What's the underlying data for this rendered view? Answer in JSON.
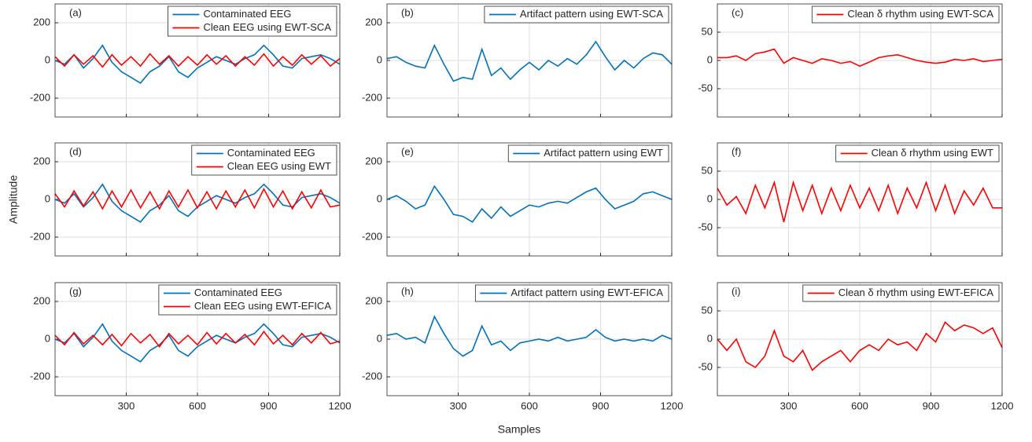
{
  "x_label": "Samples",
  "y_label": "Amplitude",
  "chart_data": [
    {
      "type": "line",
      "label": "(a)",
      "legend": "top-right",
      "grid": true,
      "show_xtick_labels": false,
      "x": [
        0,
        40,
        80,
        120,
        160,
        200,
        240,
        280,
        320,
        360,
        400,
        440,
        480,
        520,
        560,
        600,
        640,
        680,
        720,
        760,
        800,
        840,
        880,
        920,
        960,
        1000,
        1040,
        1080,
        1120,
        1160,
        1200
      ],
      "xlim": [
        0,
        1200
      ],
      "xticks": [
        300,
        600,
        900,
        1200
      ],
      "ylim": [
        -300,
        300
      ],
      "yticks": [
        -200,
        0,
        200
      ],
      "series": [
        {
          "name": "Contaminated EEG",
          "color": "#0072bd",
          "values": [
            0,
            -20,
            30,
            -40,
            10,
            80,
            -10,
            -60,
            -90,
            -120,
            -60,
            -30,
            20,
            -60,
            -90,
            -40,
            -10,
            20,
            0,
            -20,
            10,
            30,
            80,
            30,
            -30,
            -40,
            10,
            20,
            30,
            10,
            -20
          ]
        },
        {
          "name": "Clean EEG using EWT-SCA",
          "color": "#ff0000",
          "values": [
            20,
            -30,
            30,
            -20,
            25,
            -35,
            30,
            -25,
            20,
            -30,
            35,
            -20,
            25,
            -30,
            20,
            -25,
            30,
            -20,
            25,
            -30,
            20,
            -25,
            35,
            -30,
            20,
            -25,
            30,
            -20,
            25,
            -30,
            10
          ]
        }
      ]
    },
    {
      "type": "line",
      "label": "(b)",
      "legend": "top-right",
      "grid": true,
      "show_xtick_labels": false,
      "x": [
        0,
        40,
        80,
        120,
        160,
        200,
        240,
        280,
        320,
        360,
        400,
        440,
        480,
        520,
        560,
        600,
        640,
        680,
        720,
        760,
        800,
        840,
        880,
        920,
        960,
        1000,
        1040,
        1080,
        1120,
        1160,
        1200
      ],
      "xlim": [
        0,
        1200
      ],
      "xticks": [
        300,
        600,
        900,
        1200
      ],
      "ylim": [
        -300,
        300
      ],
      "yticks": [
        -200,
        0,
        200
      ],
      "series": [
        {
          "name": "Artifact pattern using EWT-SCA",
          "color": "#0072bd",
          "values": [
            10,
            20,
            -10,
            -30,
            -40,
            80,
            -20,
            -110,
            -90,
            -100,
            60,
            -80,
            -40,
            -100,
            -50,
            -10,
            -50,
            0,
            -30,
            10,
            -20,
            30,
            100,
            20,
            -50,
            0,
            -40,
            10,
            40,
            30,
            -20
          ]
        }
      ]
    },
    {
      "type": "line",
      "label": "(c)",
      "legend": "top-right",
      "grid": true,
      "show_xtick_labels": false,
      "x": [
        0,
        40,
        80,
        120,
        160,
        200,
        240,
        280,
        320,
        360,
        400,
        440,
        480,
        520,
        560,
        600,
        640,
        680,
        720,
        760,
        800,
        840,
        880,
        920,
        960,
        1000,
        1040,
        1080,
        1120,
        1160,
        1200
      ],
      "xlim": [
        0,
        1200
      ],
      "xticks": [
        300,
        600,
        900,
        1200
      ],
      "ylim": [
        -100,
        100
      ],
      "yticks": [
        -50,
        0,
        50
      ],
      "series": [
        {
          "name": "Clean δ rhythm using EWT-SCA",
          "color": "#ff0000",
          "values": [
            5,
            5,
            8,
            0,
            12,
            15,
            20,
            -5,
            5,
            0,
            -5,
            3,
            0,
            -5,
            -2,
            -10,
            -3,
            5,
            8,
            10,
            5,
            0,
            -3,
            -5,
            -3,
            2,
            0,
            3,
            -2,
            0,
            2
          ]
        }
      ]
    },
    {
      "type": "line",
      "label": "(d)",
      "legend": "top-right",
      "grid": true,
      "show_xtick_labels": false,
      "x": [
        0,
        40,
        80,
        120,
        160,
        200,
        240,
        280,
        320,
        360,
        400,
        440,
        480,
        520,
        560,
        600,
        640,
        680,
        720,
        760,
        800,
        840,
        880,
        920,
        960,
        1000,
        1040,
        1080,
        1120,
        1160,
        1200
      ],
      "xlim": [
        0,
        1200
      ],
      "xticks": [
        300,
        600,
        900,
        1200
      ],
      "ylim": [
        -300,
        300
      ],
      "yticks": [
        -200,
        0,
        200
      ],
      "series": [
        {
          "name": "Contaminated EEG",
          "color": "#0072bd",
          "values": [
            0,
            -20,
            30,
            -40,
            10,
            80,
            -10,
            -60,
            -90,
            -120,
            -60,
            -30,
            20,
            -60,
            -90,
            -40,
            -10,
            20,
            0,
            -20,
            10,
            30,
            80,
            30,
            -30,
            -40,
            10,
            20,
            30,
            10,
            -20
          ]
        },
        {
          "name": "Clean EEG using EWT",
          "color": "#ff0000",
          "values": [
            30,
            -40,
            45,
            -35,
            40,
            -50,
            45,
            -40,
            50,
            -45,
            40,
            -50,
            45,
            -40,
            50,
            -45,
            40,
            -50,
            45,
            -40,
            50,
            -45,
            55,
            -40,
            45,
            -50,
            40,
            -45,
            50,
            -40,
            -30
          ]
        }
      ]
    },
    {
      "type": "line",
      "label": "(e)",
      "legend": "top-right",
      "grid": true,
      "show_xtick_labels": false,
      "x": [
        0,
        40,
        80,
        120,
        160,
        200,
        240,
        280,
        320,
        360,
        400,
        440,
        480,
        520,
        560,
        600,
        640,
        680,
        720,
        760,
        800,
        840,
        880,
        920,
        960,
        1000,
        1040,
        1080,
        1120,
        1160,
        1200
      ],
      "xlim": [
        0,
        1200
      ],
      "xticks": [
        300,
        600,
        900,
        1200
      ],
      "ylim": [
        -300,
        300
      ],
      "yticks": [
        -200,
        0,
        200
      ],
      "series": [
        {
          "name": "Artifact pattern using EWT",
          "color": "#0072bd",
          "values": [
            0,
            20,
            -10,
            -50,
            -30,
            70,
            0,
            -80,
            -90,
            -120,
            -50,
            -100,
            -40,
            -90,
            -60,
            -30,
            -40,
            -20,
            -10,
            -20,
            10,
            40,
            60,
            0,
            -50,
            -30,
            -10,
            30,
            40,
            20,
            0
          ]
        }
      ]
    },
    {
      "type": "line",
      "label": "(f)",
      "legend": "top-right",
      "grid": true,
      "show_xtick_labels": false,
      "x": [
        0,
        40,
        80,
        120,
        160,
        200,
        240,
        280,
        320,
        360,
        400,
        440,
        480,
        520,
        560,
        600,
        640,
        680,
        720,
        760,
        800,
        840,
        880,
        920,
        960,
        1000,
        1040,
        1080,
        1120,
        1160,
        1200
      ],
      "xlim": [
        0,
        1200
      ],
      "xticks": [
        300,
        600,
        900,
        1200
      ],
      "ylim": [
        -100,
        100
      ],
      "yticks": [
        -50,
        0,
        50
      ],
      "series": [
        {
          "name": "Clean δ rhythm using EWT",
          "color": "#ff0000",
          "values": [
            20,
            -10,
            5,
            -25,
            25,
            -15,
            30,
            -40,
            30,
            -20,
            25,
            -25,
            20,
            -20,
            25,
            -15,
            20,
            -20,
            25,
            -25,
            20,
            -15,
            30,
            -20,
            25,
            -25,
            15,
            -10,
            20,
            -15,
            -15
          ]
        }
      ]
    },
    {
      "type": "line",
      "label": "(g)",
      "legend": "top-right",
      "grid": true,
      "show_xtick_labels": true,
      "x": [
        0,
        40,
        80,
        120,
        160,
        200,
        240,
        280,
        320,
        360,
        400,
        440,
        480,
        520,
        560,
        600,
        640,
        680,
        720,
        760,
        800,
        840,
        880,
        920,
        960,
        1000,
        1040,
        1080,
        1120,
        1160,
        1200
      ],
      "xlim": [
        0,
        1200
      ],
      "xticks": [
        300,
        600,
        900,
        1200
      ],
      "ylim": [
        -300,
        300
      ],
      "yticks": [
        -200,
        0,
        200
      ],
      "series": [
        {
          "name": "Contaminated EEG",
          "color": "#0072bd",
          "values": [
            0,
            -20,
            30,
            -40,
            10,
            80,
            -10,
            -60,
            -90,
            -120,
            -60,
            -30,
            20,
            -60,
            -90,
            -40,
            -10,
            20,
            0,
            -20,
            10,
            30,
            80,
            30,
            -30,
            -40,
            10,
            20,
            30,
            10,
            -20
          ]
        },
        {
          "name": "Clean EEG using EWT-EFICA",
          "color": "#ff0000",
          "values": [
            20,
            -30,
            35,
            -25,
            20,
            -30,
            25,
            -35,
            30,
            -20,
            25,
            -40,
            30,
            -25,
            20,
            -30,
            35,
            -25,
            30,
            -20,
            25,
            -30,
            40,
            -25,
            20,
            -30,
            30,
            -20,
            35,
            -25,
            -10
          ]
        }
      ]
    },
    {
      "type": "line",
      "label": "(h)",
      "legend": "top-right",
      "grid": true,
      "show_xtick_labels": true,
      "x": [
        0,
        40,
        80,
        120,
        160,
        200,
        240,
        280,
        320,
        360,
        400,
        440,
        480,
        520,
        560,
        600,
        640,
        680,
        720,
        760,
        800,
        840,
        880,
        920,
        960,
        1000,
        1040,
        1080,
        1120,
        1160,
        1200
      ],
      "xlim": [
        0,
        1200
      ],
      "xticks": [
        300,
        600,
        900,
        1200
      ],
      "ylim": [
        -300,
        300
      ],
      "yticks": [
        -200,
        0,
        200
      ],
      "series": [
        {
          "name": "Artifact pattern using EWT-EFICA",
          "color": "#0072bd",
          "values": [
            20,
            30,
            0,
            10,
            -20,
            120,
            30,
            -50,
            -90,
            -60,
            70,
            -30,
            -10,
            -60,
            -20,
            -10,
            0,
            -10,
            10,
            -10,
            0,
            10,
            50,
            10,
            -10,
            0,
            -10,
            0,
            -10,
            20,
            0
          ]
        }
      ]
    },
    {
      "type": "line",
      "label": "(i)",
      "legend": "top-right",
      "grid": true,
      "show_xtick_labels": true,
      "x": [
        0,
        40,
        80,
        120,
        160,
        200,
        240,
        280,
        320,
        360,
        400,
        440,
        480,
        520,
        560,
        600,
        640,
        680,
        720,
        760,
        800,
        840,
        880,
        920,
        960,
        1000,
        1040,
        1080,
        1120,
        1160,
        1200
      ],
      "xlim": [
        0,
        1200
      ],
      "xticks": [
        300,
        600,
        900,
        1200
      ],
      "ylim": [
        -100,
        100
      ],
      "yticks": [
        -50,
        0,
        50
      ],
      "series": [
        {
          "name": "Clean δ rhythm using EWT-EFICA",
          "color": "#ff0000",
          "values": [
            0,
            -20,
            0,
            -40,
            -50,
            -30,
            15,
            -30,
            -40,
            -20,
            -55,
            -40,
            -30,
            -20,
            -40,
            -20,
            -10,
            -20,
            0,
            -10,
            -5,
            -20,
            10,
            -5,
            30,
            15,
            25,
            20,
            10,
            20,
            -15
          ]
        }
      ]
    }
  ]
}
